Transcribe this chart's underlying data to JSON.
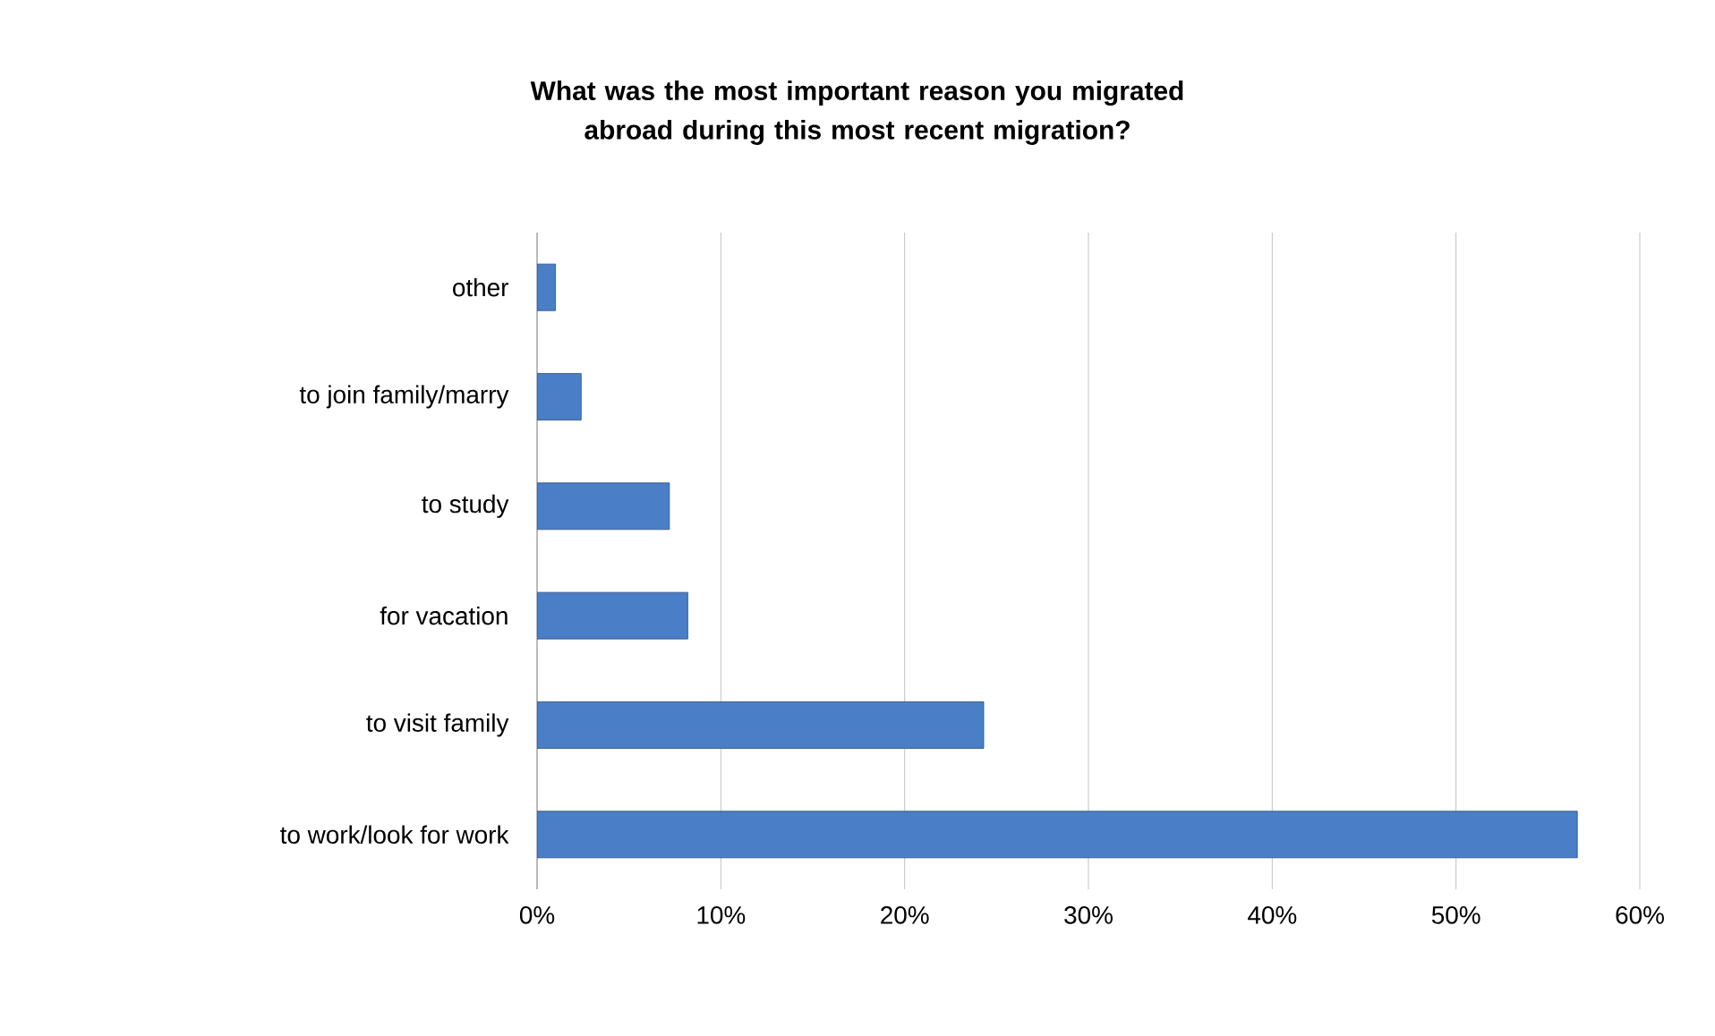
{
  "chart_data": {
    "type": "bar",
    "orientation": "horizontal",
    "title": "What was the most  important reason you migrated abroad during this most recent migration?",
    "categories": [
      "other",
      "to join family/marry",
      "to study",
      "for vacation",
      "to visit family",
      "to work/look for work"
    ],
    "values": [
      1.0,
      2.4,
      7.2,
      8.2,
      24.3,
      56.6
    ],
    "color": "#4a7ec6",
    "xlim": [
      0,
      60
    ],
    "xticks": [
      {
        "value": 0,
        "label": "0%"
      },
      {
        "value": 10,
        "label": "10%"
      },
      {
        "value": 20,
        "label": "20%"
      },
      {
        "value": 30,
        "label": "30%"
      },
      {
        "value": 40,
        "label": "40%"
      },
      {
        "value": 50,
        "label": "50%"
      },
      {
        "value": 60,
        "label": "60%"
      }
    ],
    "grid": "x"
  }
}
